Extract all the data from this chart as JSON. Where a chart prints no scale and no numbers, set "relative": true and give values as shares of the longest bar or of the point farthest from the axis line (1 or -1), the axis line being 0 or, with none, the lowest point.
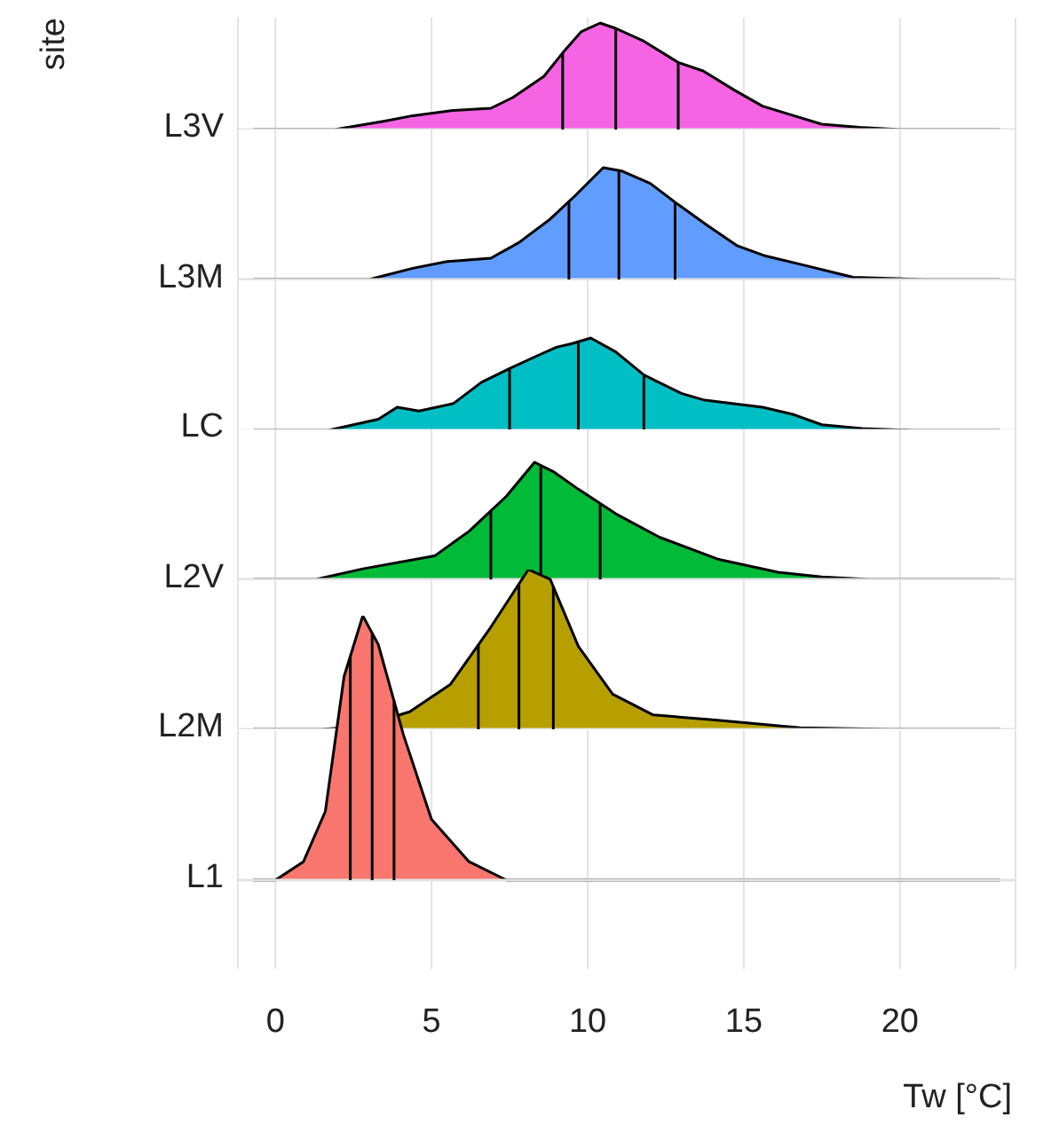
{
  "chart_data": [
    {
      "type": "area",
      "relative": true,
      "title": "L3V",
      "ylabel": "site",
      "xlim": [
        -1.2,
        23.7
      ],
      "xticks": [
        0,
        5,
        10,
        15,
        20
      ],
      "grid": "x",
      "tick_labels": false,
      "series": [
        {
          "color": "#f564e3",
          "x": [
            -0.7,
            1.9,
            3.5,
            4.4,
            5.7,
            6.9,
            7.6,
            8.6,
            9.2,
            9.8,
            10.4,
            10.9,
            11.8,
            12.9,
            13.7,
            14.7,
            15.6,
            16.6,
            17.5,
            18.7,
            20,
            23.2
          ],
          "values": [
            0,
            0,
            0.08,
            0.13,
            0.18,
            0.2,
            0.3,
            0.5,
            0.72,
            0.92,
            1,
            0.95,
            0.83,
            0.63,
            0.55,
            0.37,
            0.22,
            0.13,
            0.05,
            0.02,
            0,
            0
          ]
        }
      ],
      "ref_lines": [
        {
          "axis": "x",
          "value": 9.2,
          "color": "#000000"
        },
        {
          "axis": "x",
          "value": 10.9,
          "color": "#000000"
        },
        {
          "axis": "x",
          "value": 12.9,
          "color": "#000000"
        }
      ]
    },
    {
      "type": "area",
      "relative": true,
      "title": "L3M",
      "xlim": [
        -1.2,
        23.7
      ],
      "xticks": [
        0,
        5,
        10,
        15,
        20
      ],
      "grid": "x",
      "tick_labels": false,
      "series": [
        {
          "color": "#619cff",
          "x": [
            -0.7,
            3.0,
            4.4,
            5.5,
            6.9,
            7.8,
            8.8,
            9.6,
            10.5,
            11.1,
            12,
            12.9,
            13.8,
            14.8,
            15.7,
            16.9,
            18.5,
            20.8,
            23.2
          ],
          "values": [
            0,
            0,
            0.1,
            0.16,
            0.19,
            0.33,
            0.54,
            0.75,
            1,
            0.97,
            0.86,
            0.67,
            0.49,
            0.3,
            0.21,
            0.13,
            0.02,
            0,
            0
          ]
        }
      ],
      "ref_lines": [
        {
          "axis": "x",
          "value": 9.4,
          "color": "#000000"
        },
        {
          "axis": "x",
          "value": 11.0,
          "color": "#000000"
        },
        {
          "axis": "x",
          "value": 12.8,
          "color": "#000000"
        }
      ]
    },
    {
      "type": "area",
      "relative": true,
      "title": "LC",
      "xlim": [
        -1.2,
        23.7
      ],
      "xticks": [
        0,
        5,
        10,
        15,
        20
      ],
      "grid": "x",
      "tick_labels": false,
      "series": [
        {
          "color": "#00bfc4",
          "x": [
            -0.7,
            1.7,
            3.3,
            3.9,
            4.6,
            5.7,
            6.6,
            7.5,
            8.4,
            9.0,
            9.5,
            10.1,
            10.9,
            11.8,
            13,
            13.7,
            15.6,
            16.6,
            17.5,
            18.8,
            20.4,
            23.2
          ],
          "values": [
            0,
            0,
            0.12,
            0.25,
            0.21,
            0.29,
            0.52,
            0.67,
            0.81,
            0.9,
            0.94,
            1,
            0.85,
            0.6,
            0.4,
            0.33,
            0.25,
            0.17,
            0.06,
            0.02,
            0,
            0
          ]
        }
      ],
      "ref_lines": [
        {
          "axis": "x",
          "value": 7.5,
          "color": "#000000"
        },
        {
          "axis": "x",
          "value": 9.7,
          "color": "#000000"
        },
        {
          "axis": "x",
          "value": 11.8,
          "color": "#000000"
        }
      ]
    },
    {
      "type": "area",
      "relative": true,
      "title": "L2V",
      "xlim": [
        -1.2,
        23.7
      ],
      "xticks": [
        0,
        5,
        10,
        15,
        20
      ],
      "grid": "x",
      "tick_labels": false,
      "series": [
        {
          "color": "#00ba38",
          "x": [
            -0.7,
            1.3,
            2.8,
            5.1,
            6.2,
            7.4,
            8.3,
            8.9,
            9.7,
            10.9,
            12.3,
            14.2,
            16.1,
            17.5,
            19,
            23.2
          ],
          "values": [
            0,
            0,
            0.09,
            0.2,
            0.41,
            0.71,
            1,
            0.92,
            0.77,
            0.56,
            0.36,
            0.17,
            0.06,
            0.02,
            0,
            0
          ]
        }
      ],
      "ref_lines": [
        {
          "axis": "x",
          "value": 6.9,
          "color": "#000000"
        },
        {
          "axis": "x",
          "value": 8.5,
          "color": "#000000"
        },
        {
          "axis": "x",
          "value": 10.4,
          "color": "#000000"
        }
      ]
    },
    {
      "type": "area",
      "relative": true,
      "title": "L2M",
      "xlim": [
        -1.2,
        23.7
      ],
      "xticks": [
        0,
        5,
        10,
        15,
        20
      ],
      "grid": "x",
      "tick_labels": false,
      "series": [
        {
          "color": "#b79f00",
          "x": [
            -0.7,
            1.5,
            2.8,
            4.3,
            5.6,
            6.9,
            8.1,
            8.8,
            9.7,
            10.8,
            12.1,
            14,
            16.8,
            19.7,
            23.2
          ],
          "values": [
            0,
            0,
            0.02,
            0.11,
            0.28,
            0.64,
            1,
            0.94,
            0.52,
            0.22,
            0.09,
            0.06,
            0.01,
            0,
            0
          ]
        }
      ],
      "ref_lines": [
        {
          "axis": "x",
          "value": 6.5,
          "color": "#000000"
        },
        {
          "axis": "x",
          "value": 7.8,
          "color": "#000000"
        },
        {
          "axis": "x",
          "value": 8.9,
          "color": "#000000"
        }
      ]
    },
    {
      "type": "area",
      "relative": true,
      "title": "L1",
      "xlabel": "Tw [°C]",
      "xlim": [
        -1.2,
        23.7
      ],
      "xticks": [
        0,
        5,
        10,
        15,
        20
      ],
      "grid": "x",
      "tick_labels": "x",
      "series": [
        {
          "color": "#f8766d",
          "x": [
            -0.7,
            0,
            0.9,
            1.6,
            2.2,
            2.8,
            3.3,
            4.1,
            5,
            6.2,
            7.4,
            23.2
          ],
          "values": [
            0,
            0,
            0.07,
            0.26,
            0.77,
            1,
            0.89,
            0.55,
            0.23,
            0.07,
            0,
            0
          ]
        }
      ],
      "ref_lines": [
        {
          "axis": "x",
          "value": 2.4,
          "color": "#000000"
        },
        {
          "axis": "x",
          "value": 3.1,
          "color": "#000000"
        },
        {
          "axis": "x",
          "value": 3.8,
          "color": "#000000"
        }
      ]
    }
  ]
}
